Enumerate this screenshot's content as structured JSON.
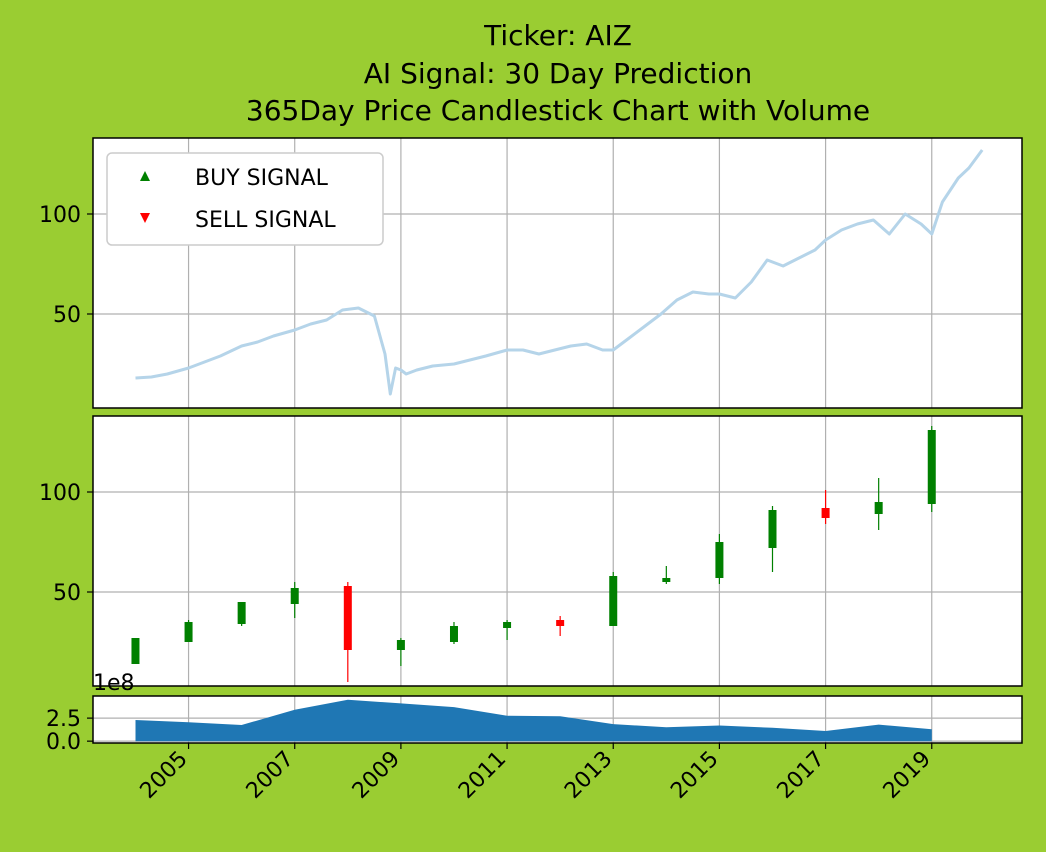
{
  "title_lines": [
    "Ticker: AIZ",
    "AI Signal: 30 Day Prediction",
    "365Day Price Candlestick Chart with Volume"
  ],
  "colors": {
    "background": "#9acd32",
    "line": "#b5d4e9",
    "up": "#008000",
    "down": "#ff0000",
    "volume": "#1f77b4",
    "grid": "#b0b0b0"
  },
  "chart_data": [
    {
      "type": "line",
      "series": [
        {
          "x": [
            2004.0,
            2004.3,
            2004.6,
            2005.0,
            2005.3,
            2005.6,
            2006.0,
            2006.3,
            2006.6,
            2007.0,
            2007.3,
            2007.6,
            2007.9,
            2008.2,
            2008.5,
            2008.7,
            2008.8,
            2008.9,
            2009.0,
            2009.1,
            2009.3,
            2009.6,
            2010.0,
            2010.3,
            2010.6,
            2011.0,
            2011.3,
            2011.6,
            2011.9,
            2012.2,
            2012.5,
            2012.8,
            2013.0,
            2013.3,
            2013.6,
            2013.9,
            2014.2,
            2014.5,
            2014.8,
            2015.0,
            2015.3,
            2015.6,
            2015.9,
            2016.2,
            2016.5,
            2016.8,
            2017.0,
            2017.3,
            2017.6,
            2017.9,
            2018.2,
            2018.5,
            2018.8,
            2019.0,
            2019.2,
            2019.5,
            2019.7,
            2019.95
          ],
          "y": [
            18,
            18.5,
            20,
            23,
            26,
            29,
            34,
            36,
            39,
            42,
            45,
            47,
            52,
            53,
            49,
            30,
            10,
            23,
            22,
            20,
            22,
            24,
            25,
            27,
            29,
            32,
            32,
            30,
            32,
            34,
            35,
            32,
            32,
            38,
            44,
            50,
            57,
            61,
            60,
            60,
            58,
            66,
            77,
            74,
            78,
            82,
            87,
            92,
            95,
            97,
            90,
            100,
            95,
            90,
            106,
            118,
            123,
            132
          ]
        }
      ],
      "ylim": [
        3,
        138
      ],
      "xlim": [
        2003.2,
        2020.7
      ],
      "yticks": [
        50,
        100
      ],
      "legend": {
        "position": "upper-left",
        "entries": [
          {
            "label": "BUY SIGNAL",
            "marker": "^",
            "color": "#008000"
          },
          {
            "label": "SELL SIGNAL",
            "marker": "v",
            "color": "#ff0000"
          }
        ]
      },
      "grid": true
    },
    {
      "type": "candlestick",
      "candles": [
        {
          "x": 2004.0,
          "open": 14,
          "high": 27,
          "low": 14,
          "close": 27
        },
        {
          "x": 2005.0,
          "open": 25,
          "high": 36,
          "low": 25,
          "close": 35
        },
        {
          "x": 2006.0,
          "open": 34,
          "high": 45,
          "low": 33,
          "close": 45
        },
        {
          "x": 2007.0,
          "open": 44,
          "high": 55,
          "low": 37,
          "close": 52
        },
        {
          "x": 2008.0,
          "open": 53,
          "high": 55,
          "low": 5,
          "close": 21
        },
        {
          "x": 2009.0,
          "open": 21,
          "high": 27,
          "low": 13,
          "close": 26
        },
        {
          "x": 2010.0,
          "open": 25,
          "high": 35,
          "low": 24,
          "close": 33
        },
        {
          "x": 2011.0,
          "open": 32,
          "high": 36,
          "low": 26,
          "close": 35
        },
        {
          "x": 2012.0,
          "open": 36,
          "high": 38,
          "low": 28,
          "close": 33
        },
        {
          "x": 2013.0,
          "open": 33,
          "high": 60,
          "low": 33,
          "close": 58
        },
        {
          "x": 2014.0,
          "open": 55,
          "high": 63,
          "low": 54,
          "close": 57
        },
        {
          "x": 2015.0,
          "open": 57,
          "high": 79,
          "low": 54,
          "close": 75
        },
        {
          "x": 2016.0,
          "open": 72,
          "high": 93,
          "low": 60,
          "close": 91
        },
        {
          "x": 2017.0,
          "open": 92,
          "high": 101,
          "low": 84,
          "close": 87
        },
        {
          "x": 2018.0,
          "open": 89,
          "high": 107,
          "low": 81,
          "close": 95
        },
        {
          "x": 2019.0,
          "open": 94,
          "high": 133,
          "low": 90,
          "close": 131
        }
      ],
      "ylim": [
        3,
        138
      ],
      "yticks": [
        50,
        100
      ],
      "grid": true
    },
    {
      "type": "area",
      "offset_label": "1e8",
      "x": [
        2004.0,
        2005.0,
        2006.0,
        2007.0,
        2008.0,
        2009.0,
        2010.0,
        2011.0,
        2012.0,
        2013.0,
        2014.0,
        2015.0,
        2016.0,
        2017.0,
        2018.0,
        2019.0
      ],
      "values": [
        2.3,
        2.05,
        1.75,
        3.4,
        4.5,
        4.1,
        3.7,
        2.75,
        2.7,
        1.85,
        1.5,
        1.7,
        1.45,
        1.1,
        1.8,
        1.3
      ],
      "ylim": [
        -0.2,
        4.9
      ],
      "yticks": [
        0.0,
        2.5
      ],
      "ytick_labels": [
        "0.0",
        "2.5"
      ],
      "xticks": [
        2005,
        2007,
        2009,
        2011,
        2013,
        2015,
        2017,
        2019
      ],
      "xtick_labels": [
        "2005",
        "2007",
        "2009",
        "2011",
        "2013",
        "2015",
        "2017",
        "2019"
      ],
      "grid": true
    }
  ]
}
